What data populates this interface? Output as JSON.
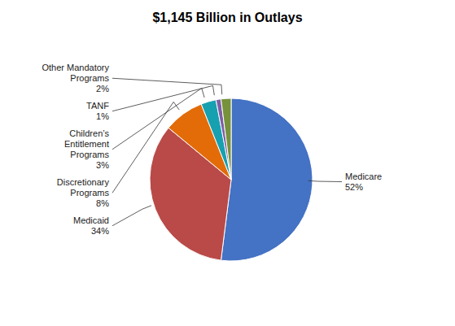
{
  "chart_data": {
    "type": "pie",
    "title": "$1,145 Billion in Outlays",
    "categories": [
      "Medicare",
      "Medicaid",
      "Discretionary Programs",
      "Children’s Entitlement Programs",
      "TANF",
      "Other Mandatory Programs"
    ],
    "values": [
      52,
      34,
      8,
      3,
      1,
      2
    ],
    "value_labels": [
      "52%",
      "34%",
      "8%",
      "3%",
      "1%",
      "2%"
    ],
    "colors": [
      "#4472C4",
      "#B94A48",
      "#E36C09",
      "#17A0B0",
      "#7F5FA6",
      "#76923C"
    ],
    "data_labels": true
  }
}
